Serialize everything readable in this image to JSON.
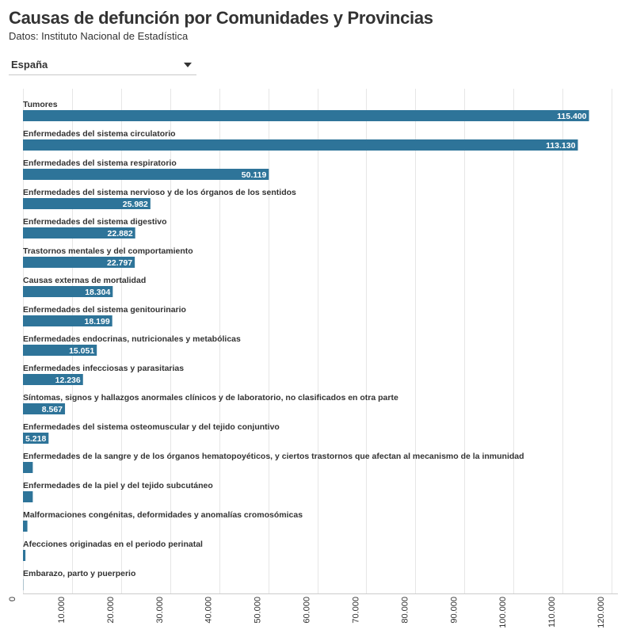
{
  "title": "Causas de defunción por Comunidades y Provincias",
  "subtitle": "Datos: Instituto Nacional de Estadística",
  "selector": {
    "value": "España"
  },
  "colors": {
    "bar": "#2e7499",
    "text": "#333333",
    "grid": "#e6e6e6"
  },
  "chart_data": {
    "type": "bar",
    "orientation": "horizontal",
    "title": "Causas de defunción por Comunidades y Provincias",
    "subtitle": "Datos: Instituto Nacional de Estadística",
    "categories": [
      "Tumores",
      "Enfermedades del sistema circulatorio",
      "Enfermedades del sistema respiratorio",
      "Enfermedades del sistema nervioso y de los órganos de los sentidos",
      "Enfermedades del sistema digestivo",
      "Trastornos mentales y del comportamiento",
      "Causas externas de mortalidad",
      "Enfermedades del sistema genitourinario",
      "Enfermedades endocrinas, nutricionales y metabólicas",
      "Enfermedades infecciosas y parasitarias",
      "Síntomas, signos y hallazgos anormales clínicos y de laboratorio, no clasificados en otra parte",
      "Enfermedades del sistema osteomuscular y del tejido conjuntivo",
      "Enfermedades de la sangre y de los órganos hematopoyéticos, y ciertos trastornos que afectan al mecanismo de la inmunidad",
      "Enfermedades de la piel y del tejido subcutáneo",
      "Malformaciones congénitas, deformidades y anomalías cromosómicas",
      "Afecciones originadas en el periodo perinatal",
      "Embarazo, parto y puerperio"
    ],
    "values": [
      115400,
      113130,
      50119,
      25982,
      22882,
      22797,
      18304,
      18199,
      15051,
      12236,
      8567,
      5218,
      2000,
      2000,
      900,
      500,
      50
    ],
    "value_labels": [
      "115.400",
      "113.130",
      "50.119",
      "25.982",
      "22.882",
      "22.797",
      "18.304",
      "18.199",
      "15.051",
      "12.236",
      "8.567",
      "5.218",
      "",
      "",
      "",
      "",
      ""
    ],
    "xlim": [
      0,
      120000
    ],
    "xticks": [
      0,
      10000,
      20000,
      30000,
      40000,
      50000,
      60000,
      70000,
      80000,
      90000,
      100000,
      110000,
      120000
    ],
    "xtick_labels": [
      "0",
      "10.000",
      "20.000",
      "30.000",
      "40.000",
      "50.000",
      "60.000",
      "70.000",
      "80.000",
      "90.000",
      "100.000",
      "110.000",
      "120.000"
    ],
    "xlabel": "",
    "ylabel": "",
    "grid": true,
    "legend": "none"
  }
}
